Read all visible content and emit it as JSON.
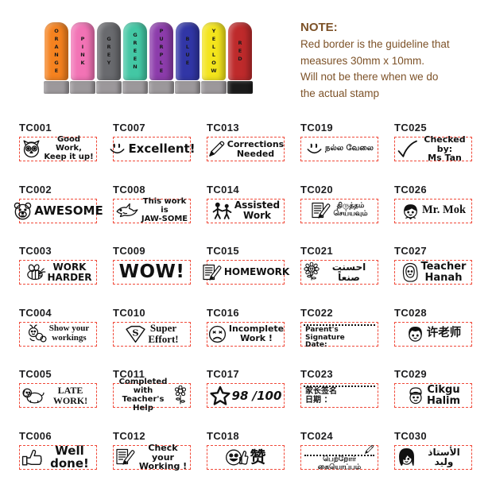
{
  "note": {
    "title": "NOTE:",
    "lines": [
      "Red border is the guideline that",
      "measures 30mm x 10mm.",
      "Will not be there when we do",
      "the actual stamp"
    ]
  },
  "stamp_photo": {
    "stamps": [
      {
        "label": "ORANGE",
        "body_color": "#F5821F",
        "base_color": "#9C989B"
      },
      {
        "label": "PINK",
        "body_color": "#F273B5",
        "base_color": "#9C989B"
      },
      {
        "label": "GREY",
        "body_color": "#696A6E",
        "base_color": "#9C989B"
      },
      {
        "label": "GREEN",
        "body_color": "#43C7A4",
        "base_color": "#9C989B"
      },
      {
        "label": "PURPLE",
        "body_color": "#8C3CAB",
        "base_color": "#9C989B"
      },
      {
        "label": "BLUE",
        "body_color": "#3136A6",
        "base_color": "#9C989B"
      },
      {
        "label": "YELLOW",
        "body_color": "#F3E41C",
        "base_color": "#9C989B"
      },
      {
        "label": "RED",
        "body_color": "#BE2A2B",
        "base_color": "#1B1B1B"
      }
    ]
  },
  "colors": {
    "guideline_border": "#F04A3A",
    "note_text": "#7D5228"
  },
  "grid": {
    "items": [
      {
        "code": "TC001",
        "icon": "owl-icon",
        "text": "Good Work,\nKeep it up!"
      },
      {
        "code": "TC007",
        "icon": "smiley-icon",
        "text": "Excellent!"
      },
      {
        "code": "TC013",
        "icon": "pencil-icon",
        "text": "Corrections\nNeeded"
      },
      {
        "code": "TC019",
        "icon": "smiley-icon",
        "text": "நல்ல வேலை"
      },
      {
        "code": "TC025",
        "icon": "checkmark-icon",
        "text": "Checked by:\nMs Tan"
      },
      {
        "code": "TC002",
        "icon": "bear-icon",
        "text": "AWESOME"
      },
      {
        "code": "TC008",
        "icon": "shark-icon",
        "text": "This work is\nJAW-SOME"
      },
      {
        "code": "TC014",
        "icon": "adult-child-figures-icon",
        "text": "Assisted\nWork"
      },
      {
        "code": "TC020",
        "icon": "paper-pencil-icon",
        "text": "திருத்தம்\nசெய்யவும்"
      },
      {
        "code": "TC026",
        "icon": "boy-face-icon",
        "text": "Mr. Mok"
      },
      {
        "code": "TC003",
        "icon": "bee-icon",
        "text": "WORK\nHARDER"
      },
      {
        "code": "TC009",
        "icon": "",
        "text": "WOW!"
      },
      {
        "code": "TC015",
        "icon": "paper-pencil-icon",
        "text": "HOMEWORK"
      },
      {
        "code": "TC021",
        "icon": "sunflower-icon",
        "text": "احسنت صنعاً"
      },
      {
        "code": "TC027",
        "icon": "hijab-girl-icon",
        "text": "Teacher\nHanah"
      },
      {
        "code": "TC004",
        "icon": "caterpillar-icon",
        "text": "Show your\nworkings"
      },
      {
        "code": "TC010",
        "icon": "superman-shield-icon",
        "text": "Super\nEffort!"
      },
      {
        "code": "TC016",
        "icon": "sad-face-icon",
        "text": "Incomplete\nWork !"
      },
      {
        "code": "TC022",
        "icon": "",
        "text": "Parent's Signature\nDate:"
      },
      {
        "code": "TC028",
        "icon": "girl-face-icon",
        "text": "许老师"
      },
      {
        "code": "TC005",
        "icon": "dog-icon",
        "text": "LATE WORK!"
      },
      {
        "code": "TC011",
        "icon": "flower-icon",
        "text": "Completed with\nTeacher's Help"
      },
      {
        "code": "TC017",
        "icon": "star-icon",
        "text": "98 /100"
      },
      {
        "code": "TC023",
        "icon": "",
        "text": "家长签名\n日期 ："
      },
      {
        "code": "TC029",
        "icon": "songkok-boy-icon",
        "text": "Cikgu\nHalim"
      },
      {
        "code": "TC006",
        "icon": "thumbs-up-icon",
        "text": "Well done!"
      },
      {
        "code": "TC012",
        "icon": "paper-pencil-icon",
        "text": "Check your\nWorking !"
      },
      {
        "code": "TC018",
        "icon": "smiley-thumbs-up-icon",
        "text": "赞"
      },
      {
        "code": "TC024",
        "icon": "pencil-icon",
        "text": "பெற்றோர் கையொப்பம்"
      },
      {
        "code": "TC030",
        "icon": "girl-black-hair-icon",
        "text": "الأستاذ وليد"
      }
    ]
  }
}
